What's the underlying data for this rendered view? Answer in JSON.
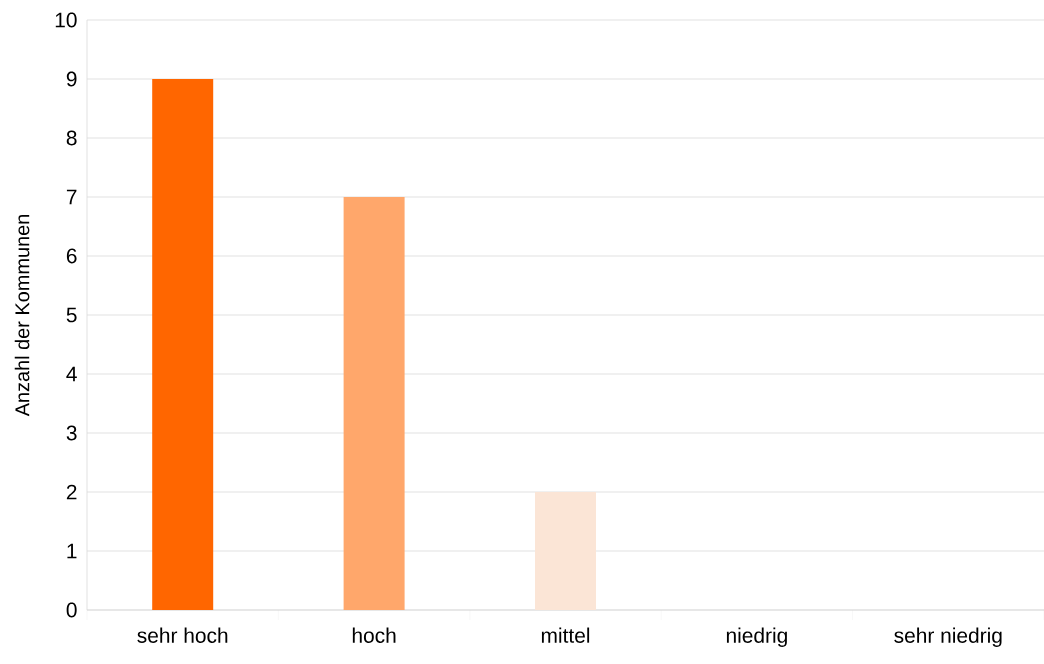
{
  "chart_data": {
    "type": "bar",
    "ylabel": "Anzahl der Kommunen",
    "categories": [
      "sehr hoch",
      "hoch",
      "mittel",
      "niedrig",
      "sehr niedrig"
    ],
    "values": [
      9,
      7,
      2,
      0,
      0
    ],
    "colors": [
      "#ff6600",
      "#ffa76b",
      "#fbe5d6",
      "#f4b183",
      "#c55a11"
    ],
    "ylim": [
      0,
      10
    ],
    "yticks": [
      0,
      1,
      2,
      3,
      4,
      5,
      6,
      7,
      8,
      9,
      10
    ],
    "grid": "y"
  }
}
